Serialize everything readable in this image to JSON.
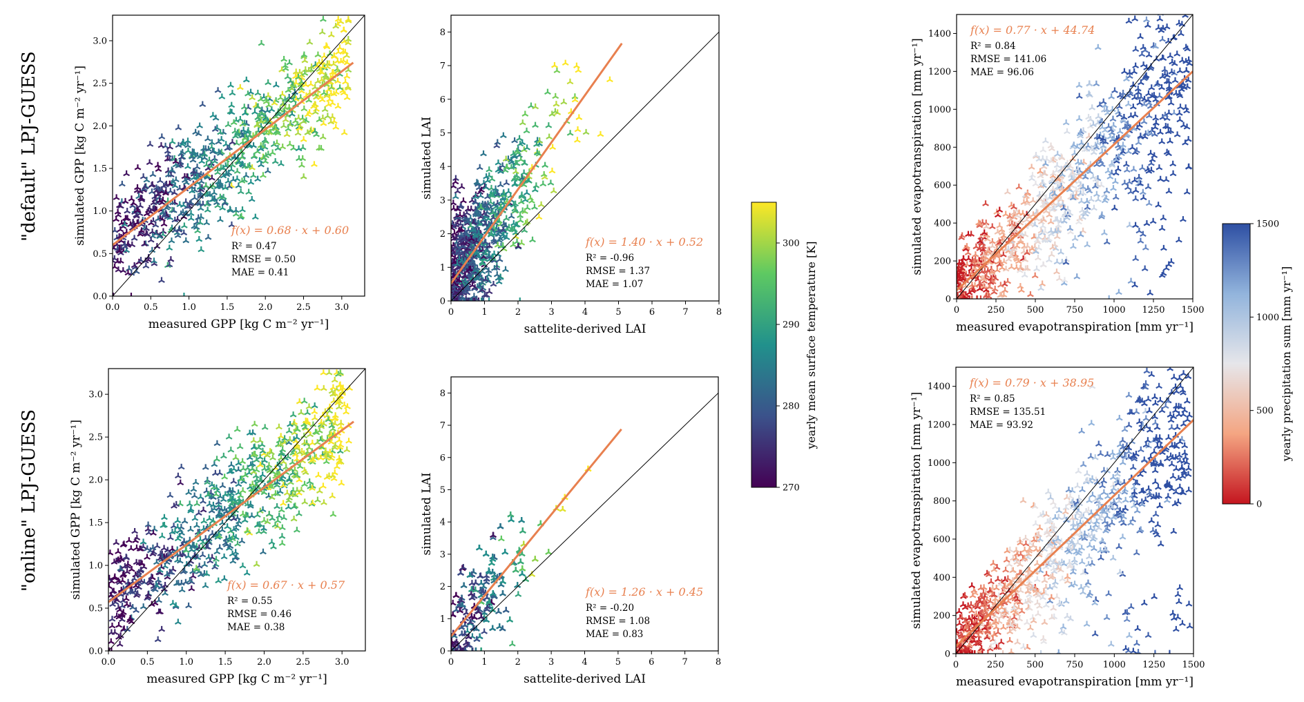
{
  "row_labels": [
    "\"default\" LPJ-GUESS",
    "\"online\" LPJ-GUESS"
  ],
  "colors": {
    "fit_line": "#e8804f",
    "one_to_one": "#000000",
    "temp_cmap": [
      "#440154",
      "#3b528b",
      "#21918c",
      "#5ec962",
      "#fde725"
    ],
    "precip_cmap": [
      "#c4151f",
      "#f4a582",
      "#e6e6ea",
      "#92b4dc",
      "#2e4fa3"
    ]
  },
  "colorbars": [
    {
      "id": "temp",
      "label": "yearly mean surface temperature [K]",
      "ticks": [
        "270",
        "280",
        "290",
        "300"
      ],
      "range": [
        270,
        305
      ]
    },
    {
      "id": "precip",
      "label": "yearly precipitation sum [mm yr⁻¹]",
      "ticks": [
        "0",
        "500",
        "1000",
        "1500"
      ],
      "range": [
        0,
        1500
      ]
    }
  ],
  "chart_data": [
    {
      "type": "scatter",
      "row": 0,
      "col": 0,
      "cmap": "temp",
      "xlabel": "measured GPP [kg C m⁻² yr⁻¹]",
      "ylabel": "simulated GPP [kg C m⁻² yr⁻¹]",
      "xlim": [
        0,
        3.3
      ],
      "ylim": [
        0,
        3.3
      ],
      "xticks": [
        0,
        0.5,
        1,
        1.5,
        2,
        2.5,
        3
      ],
      "xticklabels": [
        "0.0",
        "0.5",
        "1.0",
        "1.5",
        "2.0",
        "2.5",
        "3.0"
      ],
      "yticks": [
        0,
        0.5,
        1,
        1.5,
        2,
        2.5,
        3
      ],
      "yticklabels": [
        "0.0",
        "0.5",
        "1.0",
        "1.5",
        "2.0",
        "2.5",
        "3.0"
      ],
      "fit": {
        "slope": 0.68,
        "intercept": 0.6,
        "x_end": 3.15
      },
      "equation": "f(x) = 0.68 · x + 0.60",
      "stats": [
        "R² = 0.47",
        "RMSE = 0.50",
        "MAE = 0.41"
      ]
    },
    {
      "type": "scatter",
      "row": 0,
      "col": 1,
      "cmap": "temp",
      "xlabel": "sattelite-derived LAI",
      "ylabel": "simulated LAI",
      "xlim": [
        0,
        8
      ],
      "ylim": [
        0,
        8.5
      ],
      "xticks": [
        0,
        1,
        2,
        3,
        4,
        5,
        6,
        7,
        8
      ],
      "xticklabels": [
        "0",
        "1",
        "2",
        "3",
        "4",
        "5",
        "6",
        "7",
        "8"
      ],
      "yticks": [
        0,
        1,
        2,
        3,
        4,
        5,
        6,
        7,
        8
      ],
      "yticklabels": [
        "0",
        "1",
        "2",
        "3",
        "4",
        "5",
        "6",
        "7",
        "8"
      ],
      "fit": {
        "slope": 1.4,
        "intercept": 0.52,
        "x_end": 5.1
      },
      "equation": "f(x) = 1.40 · x + 0.52",
      "stats": [
        "R² = -0.96",
        "RMSE = 1.37",
        "MAE = 1.07"
      ]
    },
    {
      "type": "scatter",
      "row": 0,
      "col": 2,
      "cmap": "precip",
      "xlabel": "measured evapotranspiration [mm yr⁻¹]",
      "ylabel": "simulated evapotranspiration [mm yr⁻¹]",
      "xlim": [
        0,
        1500
      ],
      "ylim": [
        0,
        1500
      ],
      "xticks": [
        0,
        250,
        500,
        750,
        1000,
        1250,
        1500
      ],
      "xticklabels": [
        "0",
        "250",
        "500",
        "750",
        "1000",
        "1250",
        "1500"
      ],
      "yticks": [
        0,
        200,
        400,
        600,
        800,
        1000,
        1200,
        1400
      ],
      "yticklabels": [
        "0",
        "200",
        "400",
        "600",
        "800",
        "1000",
        "1200",
        "1400"
      ],
      "fit": {
        "slope": 0.77,
        "intercept": 44.74,
        "x_end": 1500
      },
      "equation": "f(x) = 0.77 · x + 44.74",
      "stats": [
        "R² = 0.84",
        "RMSE = 141.06",
        "MAE = 96.06"
      ]
    },
    {
      "type": "scatter",
      "row": 1,
      "col": 0,
      "cmap": "temp",
      "xlabel": "measured GPP [kg C m⁻² yr⁻¹]",
      "ylabel": "simulated GPP [kg C m⁻² yr⁻¹]",
      "xlim": [
        0,
        3.3
      ],
      "ylim": [
        0,
        3.3
      ],
      "xticks": [
        0,
        0.5,
        1,
        1.5,
        2,
        2.5,
        3
      ],
      "xticklabels": [
        "0.0",
        "0.5",
        "1.0",
        "1.5",
        "2.0",
        "2.5",
        "3.0"
      ],
      "yticks": [
        0,
        0.5,
        1,
        1.5,
        2,
        2.5,
        3
      ],
      "yticklabels": [
        "0.0",
        "0.5",
        "1.0",
        "1.5",
        "2.0",
        "2.5",
        "3.0"
      ],
      "fit": {
        "slope": 0.67,
        "intercept": 0.57,
        "x_end": 3.15
      },
      "equation": "f(x) = 0.67 · x + 0.57",
      "stats": [
        "R² = 0.55",
        "RMSE = 0.46",
        "MAE = 0.38"
      ]
    },
    {
      "type": "scatter",
      "row": 1,
      "col": 1,
      "cmap": "temp",
      "xlabel": "sattelite-derived LAI",
      "ylabel": "simulated LAI",
      "xlim": [
        0,
        8
      ],
      "ylim": [
        0,
        8.5
      ],
      "xticks": [
        0,
        1,
        2,
        3,
        4,
        5,
        6,
        7,
        8
      ],
      "xticklabels": [
        "0",
        "1",
        "2",
        "3",
        "4",
        "5",
        "6",
        "7",
        "8"
      ],
      "yticks": [
        0,
        1,
        2,
        3,
        4,
        5,
        6,
        7,
        8
      ],
      "yticklabels": [
        "0",
        "1",
        "2",
        "3",
        "4",
        "5",
        "6",
        "7",
        "8"
      ],
      "fit": {
        "slope": 1.26,
        "intercept": 0.45,
        "x_end": 5.1
      },
      "equation": "f(x) = 1.26 · x + 0.45",
      "stats": [
        "R² = -0.20",
        "RMSE = 1.08",
        "MAE = 0.83"
      ]
    },
    {
      "type": "scatter",
      "row": 1,
      "col": 2,
      "cmap": "precip",
      "xlabel": "measured evapotranspiration [mm yr⁻¹]",
      "ylabel": "simulated evapotranspiration [mm yr⁻¹]",
      "xlim": [
        0,
        1500
      ],
      "ylim": [
        0,
        1500
      ],
      "xticks": [
        0,
        250,
        500,
        750,
        1000,
        1250,
        1500
      ],
      "xticklabels": [
        "0",
        "250",
        "500",
        "750",
        "1000",
        "1250",
        "1500"
      ],
      "yticks": [
        0,
        200,
        400,
        600,
        800,
        1000,
        1200,
        1400
      ],
      "yticklabels": [
        "0",
        "200",
        "400",
        "600",
        "800",
        "1000",
        "1200",
        "1400"
      ],
      "fit": {
        "slope": 0.79,
        "intercept": 38.95,
        "x_end": 1500
      },
      "equation": "f(x) = 0.79 · x + 38.95",
      "stats": [
        "R² = 0.85",
        "RMSE = 135.51",
        "MAE = 93.92"
      ]
    }
  ]
}
